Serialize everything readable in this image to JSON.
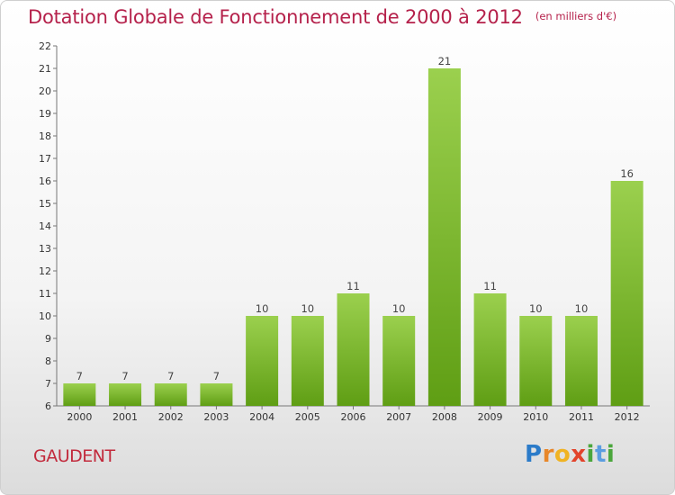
{
  "title": "Dotation Globale de Fonctionnement de 2000 à 2012",
  "unit": "(en milliers d'€)",
  "commune": "GAUDENT",
  "logo": [
    "P",
    "r",
    "o",
    "x",
    "i",
    "t",
    "i"
  ],
  "colors": {
    "bar_top": "#9bd04e",
    "bar_bottom": "#5f9e14",
    "title": "#b5214b",
    "commune": "#c22a3c"
  },
  "chart_data": {
    "type": "bar",
    "categories": [
      "2000",
      "2001",
      "2002",
      "2003",
      "2004",
      "2005",
      "2006",
      "2007",
      "2008",
      "2009",
      "2010",
      "2011",
      "2012"
    ],
    "values": [
      7,
      7,
      7,
      7,
      10,
      10,
      11,
      10,
      21,
      11,
      10,
      10,
      16
    ],
    "ylim": [
      6,
      22
    ],
    "yticks": [
      6,
      7,
      8,
      9,
      10,
      11,
      12,
      13,
      14,
      15,
      16,
      17,
      18,
      19,
      20,
      21,
      22
    ],
    "grid": false,
    "data_labels": true
  }
}
